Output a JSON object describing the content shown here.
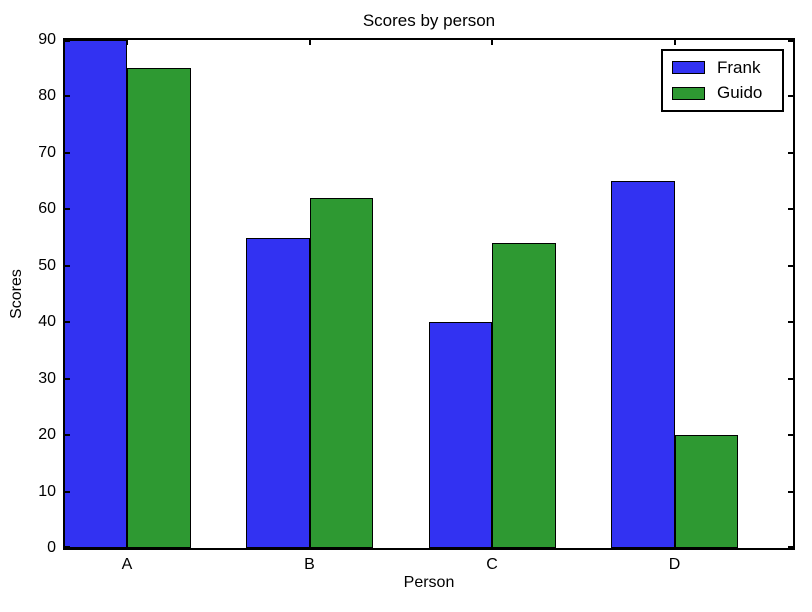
{
  "chart_data": {
    "type": "bar",
    "title": "Scores by person",
    "xlabel": "Person",
    "ylabel": "Scores",
    "categories": [
      "A",
      "B",
      "C",
      "D"
    ],
    "series": [
      {
        "name": "Frank",
        "color": "#3232f2",
        "values": [
          90,
          55,
          40,
          65
        ]
      },
      {
        "name": "Guido",
        "color": "#2e9932",
        "values": [
          85,
          62,
          54,
          20
        ]
      }
    ],
    "ylim": [
      0,
      90
    ],
    "yticks": [
      0,
      10,
      20,
      30,
      40,
      50,
      60,
      70,
      80,
      90
    ],
    "bar_edge_color": "#000000",
    "axis_color": "#000000",
    "legend_position": "upper right",
    "grid": false
  }
}
